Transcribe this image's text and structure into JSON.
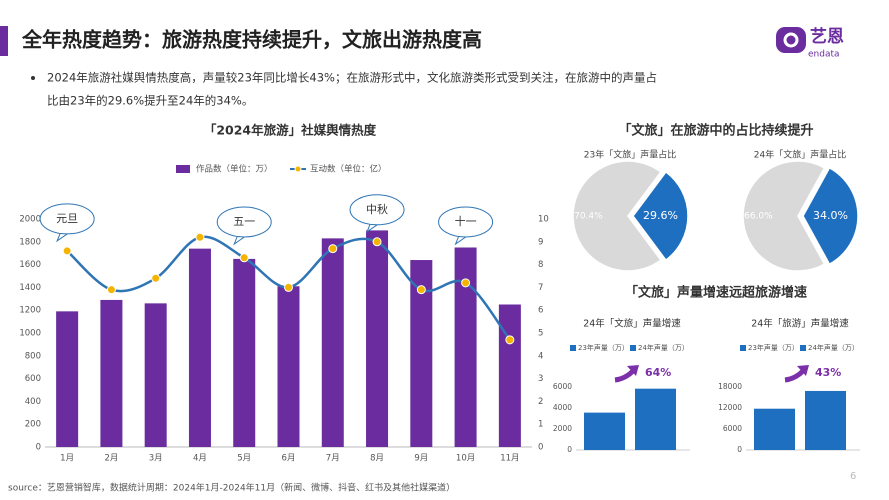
{
  "header": {
    "title": "全年热度趋势：旅游热度持续提升，文旅出游热度高",
    "logo": "艺恩",
    "logo_sub": "endata"
  },
  "bullet_lines": [
    "2024年旅游社媒舆情热度高，声量较23年同比增长43%；在旅游形式中，文化旅游类形式受到关注，在旅游中的声量占",
    "比由23年的29.6%提升至24年的34%。"
  ],
  "section_titles": [
    "「文旅」在旅游中的占比持续提升",
    "「文旅」声量增速远超旅游增速"
  ],
  "source": "source：艺恩营销智库，数据统计周期：2024年1月-2024年11月（新闻、微博、抖音、红书及其他社媒渠道）",
  "page_number": "6",
  "chart_data": [
    {
      "type": "combo",
      "title": "「2024年旅游」社媒舆情热度",
      "categories": [
        "1月",
        "2月",
        "3月",
        "4月",
        "5月",
        "6月",
        "7月",
        "8月",
        "9月",
        "10月",
        "11月"
      ],
      "series": [
        {
          "name": "作品数（单位：万）",
          "type": "bar",
          "color": "#6a2c9e",
          "values": [
            1190,
            1290,
            1260,
            1740,
            1650,
            1410,
            1830,
            1900,
            1640,
            1750,
            1250
          ]
        },
        {
          "name": "互动数（单位：亿）",
          "type": "line",
          "axis": "y2",
          "color": "#2f75b5",
          "marker_color": "#f4b400",
          "values": [
            8.6,
            6.9,
            7.4,
            9.2,
            8.3,
            7.0,
            8.7,
            9.0,
            6.9,
            7.2,
            4.7
          ]
        }
      ],
      "ylim": [
        0,
        2000
      ],
      "yticks": [
        0,
        200,
        400,
        600,
        800,
        1000,
        1200,
        1400,
        1600,
        1800,
        2000
      ],
      "y2lim": [
        0,
        10
      ],
      "y2ticks": [
        0,
        1,
        2,
        3,
        4,
        5,
        6,
        7,
        8,
        9,
        10
      ],
      "annotations": [
        {
          "text": "元旦",
          "category": "1月"
        },
        {
          "text": "五一",
          "category": "5月"
        },
        {
          "text": "中秋",
          "category": "8月"
        },
        {
          "text": "十一",
          "category": "10月"
        }
      ]
    },
    {
      "type": "pie",
      "title": "23年「文旅」声量占比",
      "values": [
        70.4,
        29.6
      ],
      "value_labels": [
        "70.4%",
        "29.6%"
      ],
      "colors": [
        "#d9d9d9",
        "#1f6fc0"
      ]
    },
    {
      "type": "pie",
      "title": "24年「文旅」声量占比",
      "values": [
        66.0,
        34.0
      ],
      "value_labels": [
        "66.0%",
        "34.0%"
      ],
      "colors": [
        "#d9d9d9",
        "#1f6fc0"
      ]
    },
    {
      "type": "bar",
      "title": "24年「文旅」声量增速",
      "series": [
        {
          "name": "23年声量（万）",
          "color": "#1f6fc0",
          "values": [
            3560
          ]
        },
        {
          "name": "24年声量（万）",
          "color": "#1f6fc0",
          "values": [
            5840
          ]
        }
      ],
      "ylim": [
        0,
        6000
      ],
      "yticks": [
        0,
        2000,
        4000,
        6000
      ],
      "annotation": "64%"
    },
    {
      "type": "bar",
      "title": "24年「旅游」声量增速",
      "series": [
        {
          "name": "23年声量（万）",
          "color": "#1f6fc0",
          "values": [
            11800
          ]
        },
        {
          "name": "24年声量（万）",
          "color": "#1f6fc0",
          "values": [
            16870
          ]
        }
      ],
      "ylim": [
        0,
        18000
      ],
      "yticks": [
        0,
        6000,
        12000,
        18000
      ],
      "annotation": "43%"
    }
  ]
}
